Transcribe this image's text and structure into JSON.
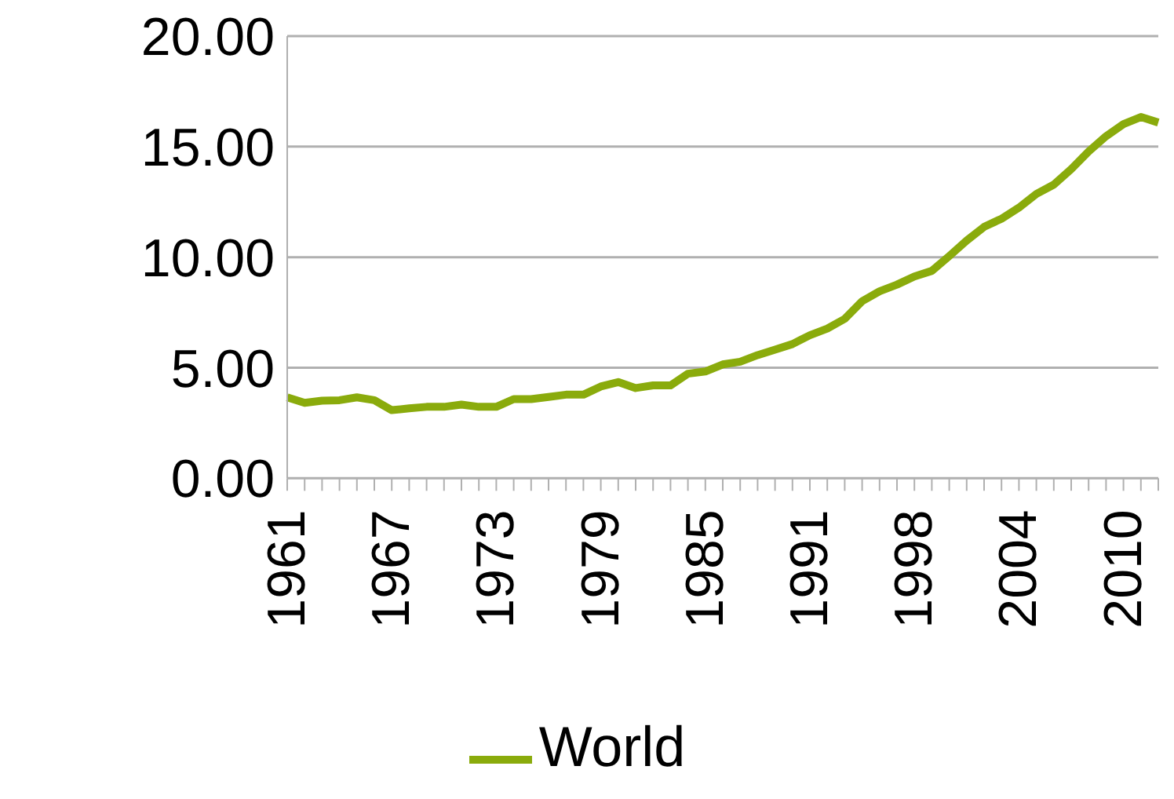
{
  "chart_data": {
    "type": "line",
    "categories": [
      "1961",
      null,
      null,
      null,
      null,
      null,
      "1967",
      null,
      null,
      null,
      null,
      null,
      "1973",
      null,
      null,
      null,
      null,
      null,
      "1979",
      null,
      null,
      null,
      null,
      null,
      "1985",
      null,
      null,
      null,
      null,
      null,
      "1991",
      null,
      null,
      null,
      null,
      null,
      "1998",
      null,
      null,
      null,
      null,
      null,
      "2004",
      null,
      null,
      null,
      null,
      null,
      "2010",
      null,
      null
    ],
    "series": [
      {
        "name": "World",
        "color": "#8aab0c",
        "values": [
          3.66,
          3.41,
          3.51,
          3.53,
          3.66,
          3.53,
          3.08,
          3.16,
          3.23,
          3.23,
          3.33,
          3.23,
          3.23,
          3.58,
          3.58,
          3.68,
          3.78,
          3.78,
          4.15,
          4.35,
          4.08,
          4.2,
          4.2,
          4.73,
          4.83,
          5.15,
          5.27,
          5.57,
          5.82,
          6.07,
          6.47,
          6.77,
          7.21,
          8.01,
          8.46,
          8.76,
          9.13,
          9.38,
          10.05,
          10.75,
          11.37,
          11.74,
          12.24,
          12.86,
          13.28,
          13.98,
          14.78,
          15.47,
          16.02,
          16.34,
          16.09
        ]
      }
    ],
    "ylim": [
      0,
      20
    ],
    "yticks": [
      {
        "value": 0,
        "label": "0.00"
      },
      {
        "value": 5,
        "label": "5.00"
      },
      {
        "value": 10,
        "label": "10.00"
      },
      {
        "value": 15,
        "label": "15.00"
      },
      {
        "value": 20,
        "label": "20.00"
      }
    ],
    "grid": "y",
    "legend": "bottom",
    "marker": "none",
    "line_style": "solid"
  }
}
